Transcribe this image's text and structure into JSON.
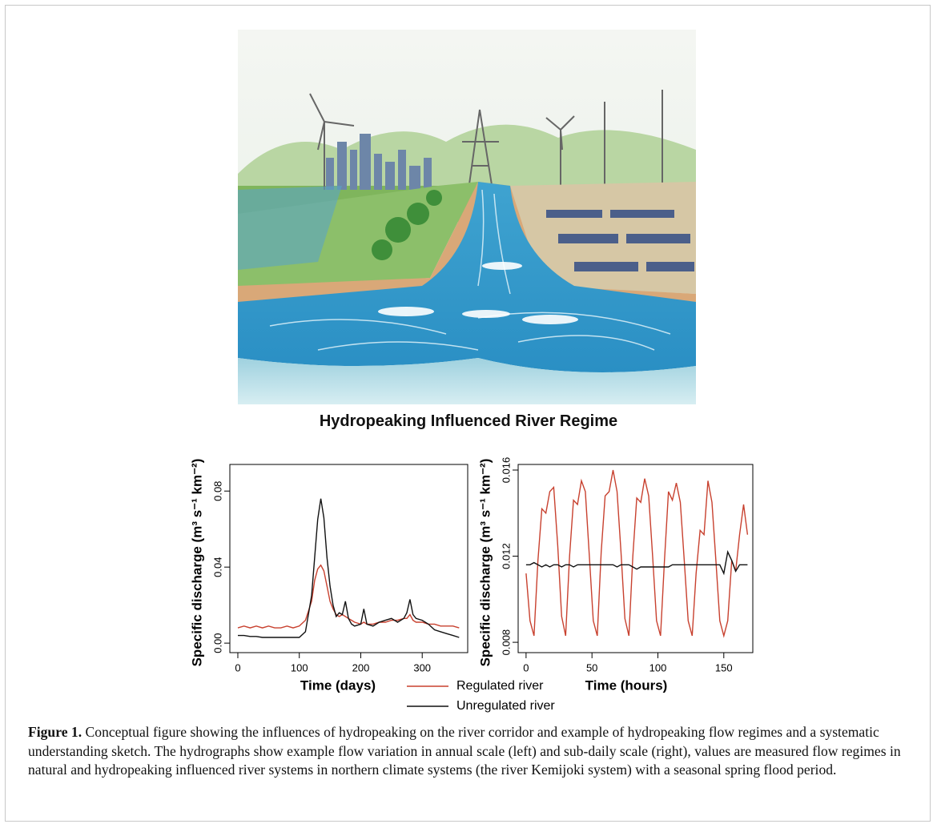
{
  "illustration_title": "Hydropeaking Influenced River Regime",
  "chart_data": [
    {
      "type": "line",
      "xlabel": "Time (days)",
      "ylabel": "Specific discharge (m³ s⁻¹ km⁻²)",
      "x": [
        0,
        10,
        20,
        30,
        40,
        50,
        60,
        70,
        80,
        90,
        100,
        110,
        120,
        125,
        130,
        135,
        140,
        145,
        150,
        155,
        160,
        165,
        170,
        175,
        180,
        185,
        190,
        200,
        205,
        210,
        220,
        230,
        240,
        250,
        260,
        270,
        275,
        280,
        285,
        290,
        300,
        310,
        320,
        330,
        340,
        350,
        360
      ],
      "series": [
        {
          "name": "Regulated river",
          "color": "#c8412f",
          "values": [
            0.008,
            0.009,
            0.008,
            0.009,
            0.008,
            0.009,
            0.008,
            0.008,
            0.009,
            0.008,
            0.009,
            0.012,
            0.022,
            0.033,
            0.039,
            0.041,
            0.038,
            0.03,
            0.022,
            0.018,
            0.015,
            0.014,
            0.015,
            0.014,
            0.013,
            0.012,
            0.011,
            0.01,
            0.011,
            0.01,
            0.01,
            0.011,
            0.011,
            0.012,
            0.012,
            0.013,
            0.013,
            0.015,
            0.012,
            0.011,
            0.011,
            0.01,
            0.01,
            0.009,
            0.009,
            0.009,
            0.008
          ]
        },
        {
          "name": "Unregulated river",
          "color": "#111111",
          "values": [
            0.004,
            0.004,
            0.0035,
            0.0035,
            0.003,
            0.003,
            0.003,
            0.003,
            0.003,
            0.003,
            0.003,
            0.006,
            0.025,
            0.045,
            0.065,
            0.076,
            0.066,
            0.045,
            0.03,
            0.02,
            0.014,
            0.016,
            0.015,
            0.022,
            0.013,
            0.01,
            0.009,
            0.01,
            0.018,
            0.01,
            0.009,
            0.011,
            0.012,
            0.013,
            0.011,
            0.013,
            0.016,
            0.023,
            0.015,
            0.013,
            0.012,
            0.01,
            0.007,
            0.006,
            0.005,
            0.004,
            0.003
          ]
        }
      ],
      "xlim": [
        -13,
        374
      ],
      "xticks": [
        0,
        100,
        200,
        300
      ],
      "ylim": [
        -0.005,
        0.094
      ],
      "yticks": [
        {
          "value": 0,
          "label": "0.00"
        },
        {
          "value": 0.04,
          "label": "0.04"
        },
        {
          "value": 0.08,
          "label": "0.08"
        }
      ]
    },
    {
      "type": "line",
      "xlabel": "Time (hours)",
      "ylabel": "Specific discharge (m³ s⁻¹ km⁻²)",
      "x": [
        0,
        3,
        6,
        9,
        12,
        15,
        18,
        21,
        24,
        27,
        30,
        33,
        36,
        39,
        42,
        45,
        48,
        51,
        54,
        57,
        60,
        63,
        66,
        69,
        72,
        75,
        78,
        81,
        84,
        87,
        90,
        93,
        96,
        99,
        102,
        105,
        108,
        111,
        114,
        117,
        120,
        123,
        126,
        129,
        132,
        135,
        138,
        141,
        144,
        147,
        150,
        153,
        156,
        159,
        162,
        165,
        168
      ],
      "series": [
        {
          "color": "#c8412f",
          "values": [
            0.0112,
            0.009,
            0.0083,
            0.0118,
            0.0142,
            0.014,
            0.015,
            0.0152,
            0.0125,
            0.0092,
            0.0083,
            0.012,
            0.0146,
            0.0144,
            0.0155,
            0.015,
            0.012,
            0.009,
            0.0083,
            0.0122,
            0.0148,
            0.015,
            0.016,
            0.015,
            0.0122,
            0.0091,
            0.0083,
            0.012,
            0.0147,
            0.0145,
            0.0156,
            0.0148,
            0.012,
            0.009,
            0.0083,
            0.0118,
            0.015,
            0.0146,
            0.0154,
            0.0145,
            0.0118,
            0.009,
            0.0083,
            0.0112,
            0.0132,
            0.013,
            0.0155,
            0.0145,
            0.0118,
            0.009,
            0.0083,
            0.009,
            0.0118,
            0.0113,
            0.013,
            0.0144,
            0.013
          ]
        },
        {
          "color": "#111111",
          "values": [
            0.0116,
            0.0116,
            0.0117,
            0.0116,
            0.0115,
            0.0116,
            0.0115,
            0.0116,
            0.0116,
            0.0115,
            0.0116,
            0.0116,
            0.0115,
            0.0116,
            0.0116,
            0.0116,
            0.0116,
            0.0116,
            0.0116,
            0.0116,
            0.0116,
            0.0116,
            0.0116,
            0.0115,
            0.0116,
            0.0116,
            0.0116,
            0.0115,
            0.0114,
            0.0115,
            0.0115,
            0.0115,
            0.0115,
            0.0115,
            0.0115,
            0.0115,
            0.0115,
            0.0116,
            0.0116,
            0.0116,
            0.0116,
            0.0116,
            0.0116,
            0.0116,
            0.0116,
            0.0116,
            0.0116,
            0.0116,
            0.0116,
            0.0116,
            0.0112,
            0.0122,
            0.0118,
            0.0113,
            0.0116,
            0.0116,
            0.0116
          ]
        }
      ],
      "xlim": [
        -6,
        172
      ],
      "xticks": [
        0,
        50,
        100,
        150
      ],
      "ylim": [
        0.00752,
        0.01626
      ],
      "yticks": [
        {
          "value": 0.008,
          "label": "0.008"
        },
        {
          "value": 0.012,
          "label": "0.012"
        },
        {
          "value": 0.016,
          "label": "0.016"
        }
      ]
    }
  ],
  "caption": {
    "label": "Figure 1.",
    "text": "Conceptual figure showing the influences of hydropeaking on the river corridor and example of hydropeaking flow regimes and a systematic understanding sketch. The hydrographs show example flow variation in annual scale (left) and sub-daily scale (right), values are measured flow regimes in natural and hydropeaking influenced river systems in northern climate systems (the river Kemijoki system) with a seasonal spring flood period."
  }
}
